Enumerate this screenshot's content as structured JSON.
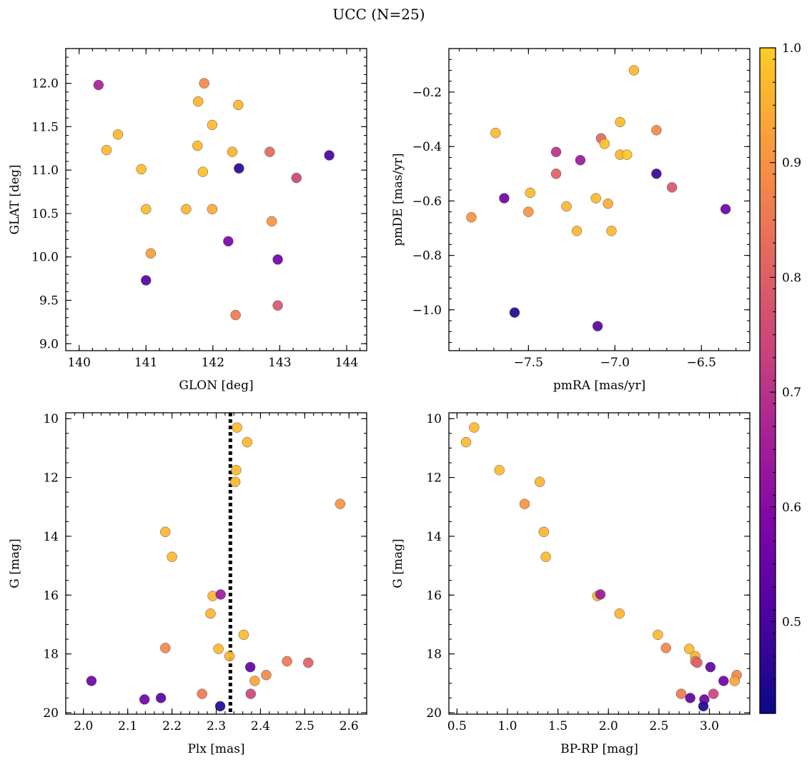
{
  "figure": {
    "title": "UCC (N=25)"
  },
  "colorbar": {
    "range": [
      0.42,
      1.0
    ],
    "ticks": [
      0.5,
      0.6,
      0.7,
      0.8,
      0.9,
      1.0
    ],
    "tick_labels": [
      "0.5",
      "0.6",
      "0.7",
      "0.8",
      "0.9",
      "1.0"
    ],
    "colormap": "plasma"
  },
  "chart_data": [
    {
      "type": "scatter",
      "id": "glon-glat",
      "xlabel": "GLON [deg]",
      "ylabel": "GLAT [deg]",
      "xlim": [
        139.8,
        144.3
      ],
      "ylim": [
        8.92,
        12.4
      ],
      "xticks": [
        140,
        141,
        142,
        143,
        144
      ],
      "xtick_labels": [
        "140",
        "141",
        "142",
        "143",
        "144"
      ],
      "yticks": [
        9.0,
        9.5,
        10.0,
        10.5,
        11.0,
        11.5,
        12.0
      ],
      "ytick_labels": [
        "9.0",
        "9.5",
        "10.0",
        "10.5",
        "11.0",
        "11.5",
        "12.0"
      ],
      "invert_y": false,
      "points": [
        {
          "x": 140.29,
          "y": 11.98,
          "c": 0.66
        },
        {
          "x": 140.41,
          "y": 11.23,
          "c": 0.97
        },
        {
          "x": 140.58,
          "y": 11.41,
          "c": 0.97
        },
        {
          "x": 140.93,
          "y": 11.01,
          "c": 0.97
        },
        {
          "x": 141.0,
          "y": 10.55,
          "c": 0.97
        },
        {
          "x": 141.07,
          "y": 10.04,
          "c": 0.92
        },
        {
          "x": 141.0,
          "y": 9.73,
          "c": 0.52
        },
        {
          "x": 141.6,
          "y": 10.55,
          "c": 0.96
        },
        {
          "x": 141.77,
          "y": 11.28,
          "c": 0.97
        },
        {
          "x": 141.78,
          "y": 11.79,
          "c": 0.96
        },
        {
          "x": 141.85,
          "y": 10.98,
          "c": 0.98
        },
        {
          "x": 141.87,
          "y": 12.0,
          "c": 0.88
        },
        {
          "x": 141.99,
          "y": 11.52,
          "c": 0.97
        },
        {
          "x": 141.99,
          "y": 10.55,
          "c": 0.94
        },
        {
          "x": 142.23,
          "y": 10.18,
          "c": 0.58
        },
        {
          "x": 142.29,
          "y": 11.21,
          "c": 0.96
        },
        {
          "x": 142.38,
          "y": 11.75,
          "c": 0.96
        },
        {
          "x": 142.39,
          "y": 11.02,
          "c": 0.46
        },
        {
          "x": 142.34,
          "y": 9.33,
          "c": 0.85
        },
        {
          "x": 142.85,
          "y": 11.21,
          "c": 0.82
        },
        {
          "x": 142.88,
          "y": 10.41,
          "c": 0.9
        },
        {
          "x": 142.97,
          "y": 9.97,
          "c": 0.56
        },
        {
          "x": 142.97,
          "y": 9.44,
          "c": 0.78
        },
        {
          "x": 143.25,
          "y": 10.91,
          "c": 0.74
        },
        {
          "x": 143.74,
          "y": 11.17,
          "c": 0.5
        }
      ]
    },
    {
      "type": "scatter",
      "id": "pmra-pmde",
      "xlabel": "pmRA [mas/yr]",
      "ylabel": "pmDE [mas/yr]",
      "xlim": [
        -7.96,
        -6.22
      ],
      "ylim": [
        -1.15,
        -0.04
      ],
      "xticks": [
        -7.5,
        -7.0,
        -6.5
      ],
      "xtick_labels": [
        "−7.5",
        "−7.0",
        "−6.5"
      ],
      "yticks": [
        -1.0,
        -0.8,
        -0.6,
        -0.4,
        -0.2
      ],
      "ytick_labels": [
        "−1.0",
        "−0.8",
        "−0.6",
        "−0.4",
        "−0.2"
      ],
      "invert_y": false,
      "points": [
        {
          "x": -7.83,
          "y": -0.66,
          "c": 0.9
        },
        {
          "x": -7.69,
          "y": -0.35,
          "c": 0.97
        },
        {
          "x": -7.64,
          "y": -0.59,
          "c": 0.56
        },
        {
          "x": -7.58,
          "y": -1.01,
          "c": 0.45
        },
        {
          "x": -7.49,
          "y": -0.57,
          "c": 0.97
        },
        {
          "x": -7.5,
          "y": -0.64,
          "c": 0.9
        },
        {
          "x": -7.34,
          "y": -0.42,
          "c": 0.7
        },
        {
          "x": -7.34,
          "y": -0.5,
          "c": 0.8
        },
        {
          "x": -7.28,
          "y": -0.62,
          "c": 0.96
        },
        {
          "x": -7.22,
          "y": -0.71,
          "c": 0.97
        },
        {
          "x": -7.2,
          "y": -0.45,
          "c": 0.64
        },
        {
          "x": -7.11,
          "y": -0.59,
          "c": 0.97
        },
        {
          "x": -7.1,
          "y": -1.06,
          "c": 0.52
        },
        {
          "x": -7.08,
          "y": -0.37,
          "c": 0.82
        },
        {
          "x": -7.06,
          "y": -0.39,
          "c": 0.98
        },
        {
          "x": -7.04,
          "y": -0.61,
          "c": 0.94
        },
        {
          "x": -7.02,
          "y": -0.71,
          "c": 0.97
        },
        {
          "x": -6.97,
          "y": -0.31,
          "c": 0.97
        },
        {
          "x": -6.97,
          "y": -0.43,
          "c": 0.96
        },
        {
          "x": -6.93,
          "y": -0.43,
          "c": 0.99
        },
        {
          "x": -6.89,
          "y": -0.12,
          "c": 0.97
        },
        {
          "x": -6.76,
          "y": -0.34,
          "c": 0.88
        },
        {
          "x": -6.76,
          "y": -0.5,
          "c": 0.48
        },
        {
          "x": -6.67,
          "y": -0.55,
          "c": 0.78
        },
        {
          "x": -6.36,
          "y": -0.63,
          "c": 0.56
        }
      ]
    },
    {
      "type": "scatter",
      "id": "plx-g",
      "xlabel": "Plx [mas]",
      "ylabel": "G [mag]",
      "xlim": [
        1.96,
        2.64
      ],
      "ylim": [
        20.05,
        9.8
      ],
      "xticks": [
        2.0,
        2.1,
        2.2,
        2.3,
        2.4,
        2.5,
        2.6
      ],
      "xtick_labels": [
        "2.0",
        "2.1",
        "2.2",
        "2.3",
        "2.4",
        "2.5",
        "2.6"
      ],
      "yticks": [
        10,
        12,
        14,
        16,
        18,
        20
      ],
      "ytick_labels": [
        "10",
        "12",
        "14",
        "16",
        "18",
        "20"
      ],
      "invert_y": true,
      "vline": 2.332,
      "points": [
        {
          "x": 2.347,
          "y": 10.3,
          "c": 0.97
        },
        {
          "x": 2.37,
          "y": 10.8,
          "c": 0.97
        },
        {
          "x": 2.345,
          "y": 11.75,
          "c": 0.97
        },
        {
          "x": 2.343,
          "y": 12.15,
          "c": 0.96
        },
        {
          "x": 2.58,
          "y": 12.9,
          "c": 0.9
        },
        {
          "x": 2.185,
          "y": 13.85,
          "c": 0.96
        },
        {
          "x": 2.2,
          "y": 14.7,
          "c": 0.97
        },
        {
          "x": 2.292,
          "y": 16.03,
          "c": 0.96
        },
        {
          "x": 2.31,
          "y": 15.98,
          "c": 0.64
        },
        {
          "x": 2.287,
          "y": 16.63,
          "c": 0.96
        },
        {
          "x": 2.362,
          "y": 17.35,
          "c": 0.97
        },
        {
          "x": 2.185,
          "y": 17.8,
          "c": 0.88
        },
        {
          "x": 2.305,
          "y": 17.83,
          "c": 0.97
        },
        {
          "x": 2.33,
          "y": 18.08,
          "c": 0.96
        },
        {
          "x": 2.46,
          "y": 18.25,
          "c": 0.85
        },
        {
          "x": 2.508,
          "y": 18.3,
          "c": 0.8
        },
        {
          "x": 2.377,
          "y": 18.45,
          "c": 0.54
        },
        {
          "x": 2.413,
          "y": 18.72,
          "c": 0.88
        },
        {
          "x": 2.018,
          "y": 18.92,
          "c": 0.56
        },
        {
          "x": 2.387,
          "y": 18.92,
          "c": 0.93
        },
        {
          "x": 2.268,
          "y": 19.36,
          "c": 0.85
        },
        {
          "x": 2.378,
          "y": 19.36,
          "c": 0.74
        },
        {
          "x": 2.175,
          "y": 19.5,
          "c": 0.53
        },
        {
          "x": 2.138,
          "y": 19.55,
          "c": 0.56
        },
        {
          "x": 2.309,
          "y": 19.78,
          "c": 0.45
        }
      ]
    },
    {
      "type": "scatter",
      "id": "bprp-g",
      "xlabel": "BP-RP [mag]",
      "ylabel": "G [mag]",
      "xlim": [
        0.42,
        3.4
      ],
      "ylim": [
        20.05,
        9.8
      ],
      "xticks": [
        0.5,
        1.0,
        1.5,
        2.0,
        2.5,
        3.0
      ],
      "xtick_labels": [
        "0.5",
        "1.0",
        "1.5",
        "2.0",
        "2.5",
        "3.0"
      ],
      "yticks": [
        10,
        12,
        14,
        16,
        18,
        20
      ],
      "ytick_labels": [
        "10",
        "12",
        "14",
        "16",
        "18",
        "20"
      ],
      "invert_y": true,
      "points": [
        {
          "x": 0.67,
          "y": 10.3,
          "c": 0.97
        },
        {
          "x": 0.59,
          "y": 10.8,
          "c": 0.97
        },
        {
          "x": 0.92,
          "y": 11.75,
          "c": 0.97
        },
        {
          "x": 1.32,
          "y": 12.15,
          "c": 0.96
        },
        {
          "x": 1.17,
          "y": 12.9,
          "c": 0.9
        },
        {
          "x": 1.36,
          "y": 13.85,
          "c": 0.96
        },
        {
          "x": 1.38,
          "y": 14.7,
          "c": 0.97
        },
        {
          "x": 1.89,
          "y": 16.03,
          "c": 0.96
        },
        {
          "x": 1.92,
          "y": 15.98,
          "c": 0.64
        },
        {
          "x": 2.11,
          "y": 16.63,
          "c": 0.96
        },
        {
          "x": 2.49,
          "y": 17.35,
          "c": 0.97
        },
        {
          "x": 2.57,
          "y": 17.8,
          "c": 0.88
        },
        {
          "x": 2.8,
          "y": 17.83,
          "c": 0.97
        },
        {
          "x": 2.86,
          "y": 18.08,
          "c": 0.96
        },
        {
          "x": 2.86,
          "y": 18.25,
          "c": 0.85
        },
        {
          "x": 2.88,
          "y": 18.3,
          "c": 0.8
        },
        {
          "x": 3.01,
          "y": 18.45,
          "c": 0.54
        },
        {
          "x": 3.27,
          "y": 18.72,
          "c": 0.88
        },
        {
          "x": 3.14,
          "y": 18.92,
          "c": 0.56
        },
        {
          "x": 3.25,
          "y": 18.92,
          "c": 0.93
        },
        {
          "x": 2.72,
          "y": 19.36,
          "c": 0.85
        },
        {
          "x": 3.04,
          "y": 19.36,
          "c": 0.74
        },
        {
          "x": 2.81,
          "y": 19.5,
          "c": 0.53
        },
        {
          "x": 2.95,
          "y": 19.55,
          "c": 0.56
        },
        {
          "x": 2.94,
          "y": 19.78,
          "c": 0.45
        }
      ]
    }
  ]
}
